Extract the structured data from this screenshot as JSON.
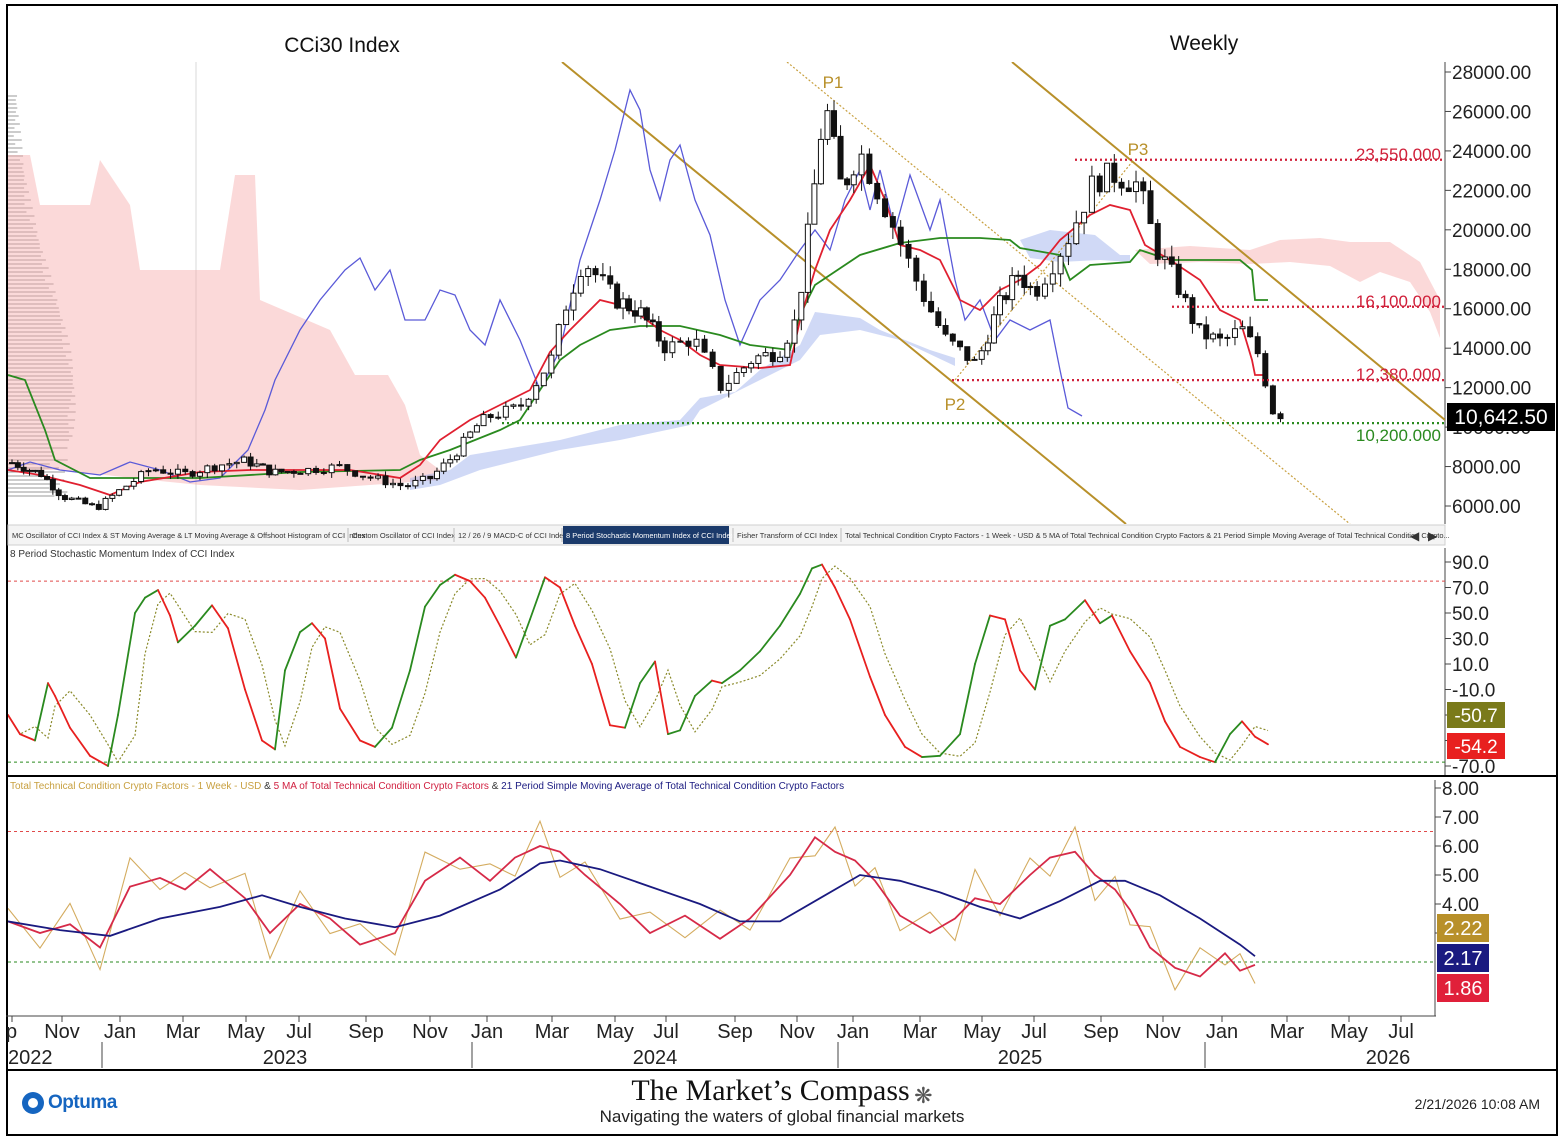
{
  "chart_data": [
    {
      "type": "candlestick",
      "title": "CCi30 Index",
      "period": "Weekly",
      "ylim": [
        5000,
        28500
      ],
      "y_ticks": [
        "28000.00",
        "26000.00",
        "24000.00",
        "22000.00",
        "20000.00",
        "18000.00",
        "16000.00",
        "14000.00",
        "12000.00",
        "10000.00",
        "8000.00",
        "6000.00"
      ],
      "last_price_label": "10,642.50",
      "horizontal_levels": [
        {
          "label": "23,550.000",
          "value": 23550,
          "color": "#d0203a"
        },
        {
          "label": "16,100.000",
          "value": 16100,
          "color": "#d0203a"
        },
        {
          "label": "12,380.000",
          "value": 12380,
          "color": "#d0203a"
        },
        {
          "label": "10,200.000",
          "value": 10200,
          "color": "#2a8a1f"
        }
      ],
      "pivot_labels": [
        "P1",
        "P2",
        "P3"
      ],
      "tabs": [
        "MC Oscillator of CCI Index & ST Moving Average & LT Moving Average & Offshoot Histogram of CCI Index",
        "Custom Oscillator of CCI Index",
        "12 / 26 / 9 MACD-C of CCI Index",
        "8 Period Stochastic Momentum Index of CCI Index",
        "Fisher Transform of CCI Index",
        "Total Technical Condition Crypto Factors - 1 Week - USD & 5 MA of Total Technical Condition Crypto Factors & 21 Period Simple Moving Average of Total Technical Condition Crypto..."
      ],
      "active_tab": 3,
      "series": [
        {
          "name": "ST Moving Average",
          "color": "#e02030"
        },
        {
          "name": "LT Moving Average",
          "color": "#2a8a1f"
        },
        {
          "name": "MC Oscillator",
          "color": "#5a5ad8"
        }
      ]
    },
    {
      "type": "line",
      "title": "8 Period Stochastic Momentum Index of CCI Index",
      "ylim": [
        -72,
        92
      ],
      "y_ticks": [
        "90.0",
        "70.0",
        "50.0",
        "30.0",
        "10.0",
        "-10.0",
        "-30.0",
        "-50.0",
        "-70.0"
      ],
      "reference_levels": [
        75,
        -67
      ],
      "value_labels": [
        {
          "text": "-50.7",
          "color": "#7a7a1a"
        },
        {
          "text": "-54.2",
          "color": "#e8201f"
        }
      ],
      "series": [
        {
          "name": "SMI",
          "color": "#2a8a1f"
        },
        {
          "name": "Signal",
          "color": "#8a8a2a"
        }
      ]
    },
    {
      "type": "line",
      "title": "Total Technical Condition Crypto Factors - 1 Week - USD & 5 MA of Total Technical Condition Crypto Factors & 21 Period Simple Moving Average of Total Technical Condition Crypto Factors",
      "title_parts": [
        {
          "text": "Total Technical Condition Crypto Factors - 1 Week - USD",
          "color": "#c8a040"
        },
        {
          "text": " & ",
          "color": "#333"
        },
        {
          "text": "5 MA of Total Technical Condition Crypto Factors",
          "color": "#d02040"
        },
        {
          "text": " & ",
          "color": "#333"
        },
        {
          "text": "21 Period Simple Moving Average of Total Technical Condition Crypto Factors",
          "color": "#1a1a80"
        }
      ],
      "ylim": [
        1.0,
        8.2
      ],
      "y_ticks": [
        "8.00",
        "7.00",
        "6.00",
        "5.00",
        "4.00",
        "3.00"
      ],
      "reference_levels": [
        6.5,
        2.0
      ],
      "value_labels": [
        {
          "text": "2.22",
          "color": "#b8902a"
        },
        {
          "text": "2.17",
          "color": "#1a1a80"
        },
        {
          "text": "1.86",
          "color": "#e0203a"
        }
      ],
      "series": [
        {
          "name": "Total Technical Condition Crypto Factors",
          "color": "#d4ac60"
        },
        {
          "name": "5 MA",
          "color": "#d62a48"
        },
        {
          "name": "21 Period SMA",
          "color": "#1a1a80"
        }
      ]
    }
  ],
  "x_axis": {
    "months": [
      "p",
      "Nov",
      "Jan",
      "Mar",
      "May",
      "Jul",
      "Sep",
      "Nov",
      "Jan",
      "Mar",
      "May",
      "Jul",
      "Sep",
      "Nov",
      "Jan",
      "Mar",
      "May",
      "Jul",
      "Sep",
      "Nov",
      "Jan",
      "Mar",
      "May",
      "Jul"
    ],
    "years": [
      "2022",
      "2023",
      "2024",
      "2025",
      "2026"
    ]
  },
  "footer": {
    "vendor": "Optuma",
    "brand_title": "The Market’s Compass",
    "brand_subtitle": "Navigating the waters of global financial markets",
    "timestamp": "2/21/2026 10:08 AM"
  }
}
